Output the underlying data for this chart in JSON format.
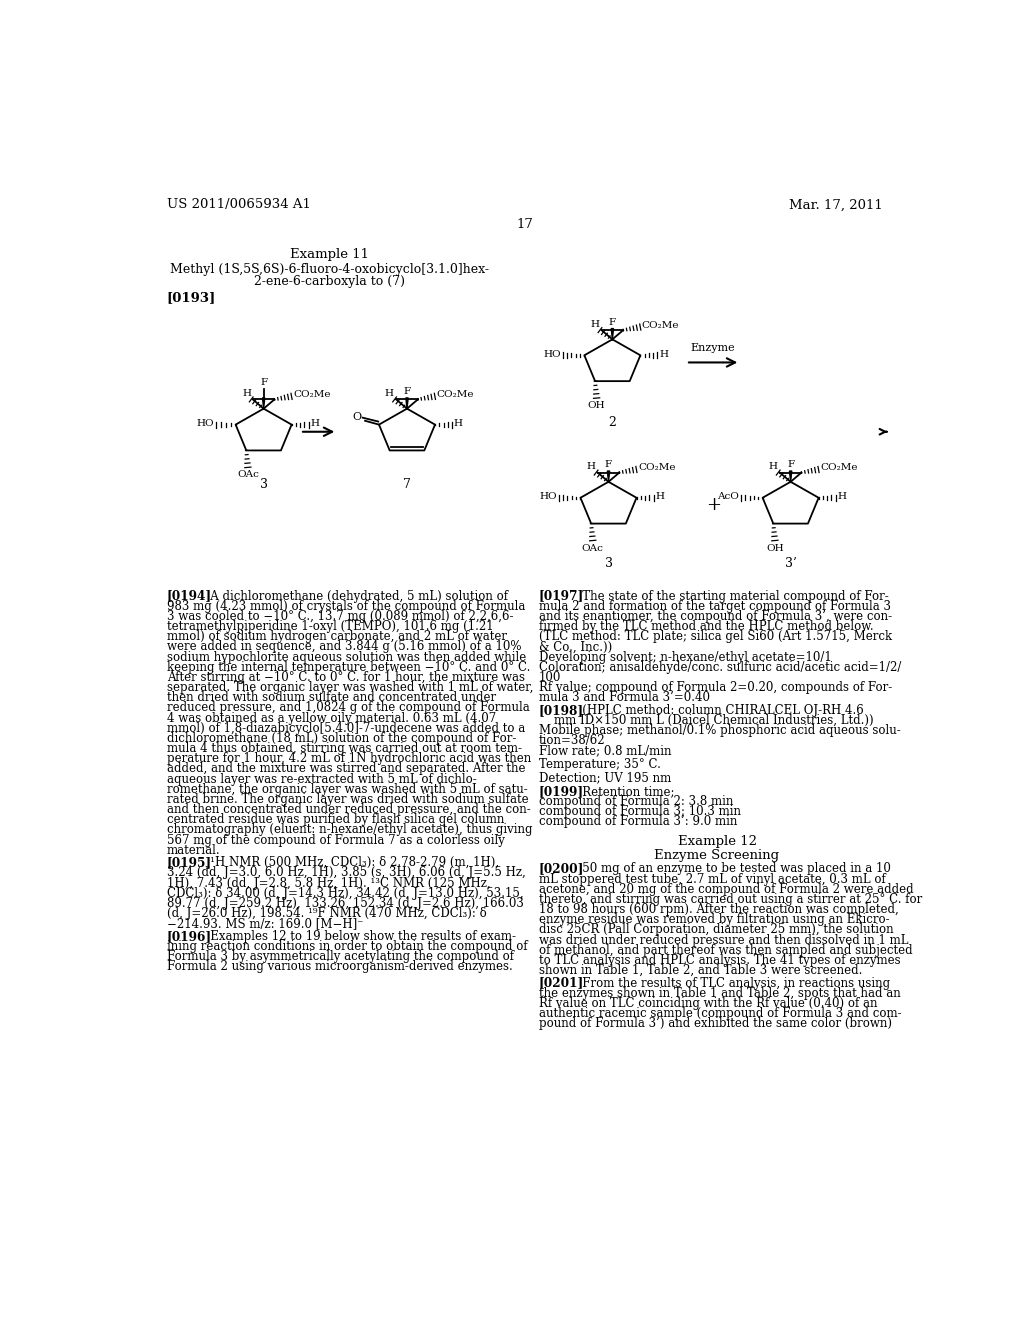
{
  "bg_color": "#ffffff",
  "header_left": "US 2011/0065934 A1",
  "header_right": "Mar. 17, 2011",
  "page_number": "17",
  "left_col_lines": [
    "[0194]   A dichloromethane (dehydrated, 5 mL) solution of",
    "983 mg (4.23 mmol) of crystals of the compound of Formula",
    "3 was cooled to −10° C., 13.7 mg (0.089 mmol) of 2,2,6,6-",
    "tetramethylpiperidine 1-oxyl (TEMPO), 101.6 mg (1.21",
    "mmol) of sodium hydrogen carbonate, and 2 mL of water",
    "were added in sequence, and 3.844 g (5.16 mmol) of a 10%",
    "sodium hypochlorite aqueous solution was then added while",
    "keeping the internal temperature between −10° C. and 0° C.",
    "After stirring at −10° C. to 0° C. for 1 hour, the mixture was",
    "separated. The organic layer was washed with 1 mL of water,",
    "then dried with sodium sulfate and concentrated under",
    "reduced pressure, and 1,0824 g of the compound of Formula",
    "4 was obtained as a yellow oily material. 0.63 mL (4.07",
    "mmol) of 1,8-diazabicyclo[5.4.0]-7-undecene was added to a",
    "dichloromethane (18 mL) solution of the compound of For-",
    "mula 4 thus obtained, stirring was carried out at room tem-",
    "perature for 1 hour, 4.2 mL of 1N hydrochloric acid was then",
    "added, and the mixture was stirred and separated. After the",
    "aqueous layer was re-extracted with 5 mL of dichlo-",
    "romethane, the organic layer was washed with 5 mL of satu-",
    "rated brine. The organic layer was dried with sodium sulfate",
    "and then concentrated under reduced pressure, and the con-",
    "centrated residue was purified by flash silica gel column",
    "chromatography (eluent: n-hexane/ethyl acetate), thus giving",
    "567 mg of the compound of Formula 7 as a colorless oily",
    "material."
  ],
  "p195_lines": [
    "[0195]   ¹H NMR (500 MHz, CDCl₃): δ 2.78-2.79 (m, 1H),",
    "3.24 (dd, J=3.0, 6.0 Hz, 1H), 3.85 (s, 3H), 6.06 (d, J=5.5 Hz,",
    "1H), 7.43 (dd, J=2.8, 5.8 Hz, 1H). ¹³C NMR (125 MHz,",
    "CDCl₃): δ 34.00 (d, J=14.3 Hz), 34.42 (d, J=13.0 Hz), 53.15,",
    "89.77 (d, J=259.2 Hz), 133.26, 152.34 (d, J=2.6 Hz), 166.03",
    "(d, J=26.0 Hz), 198.54. ¹⁹F NMR (470 MHz, CDCl₃): δ",
    "−214.93. MS m/z: 169.0 [M−H]⁻"
  ],
  "p196_lines": [
    "[0196]   Examples 12 to 19 below show the results of exam-",
    "ining reaction conditions in order to obtain the compound of",
    "Formula 3 by asymmetrically acetylating the compound of",
    "Formula 2 using various microorganism-derived enzymes."
  ],
  "right_col_lines": [
    "[0197]   The state of the starting material compound of For-",
    "mula 2 and formation of the target compound of Formula 3",
    "and its enantiomer, the compound of Formula 3’, were con-",
    "firmed by the TLC method and the HPLC method below.",
    "(TLC method: TLC plate; silica gel Si60 (Art 1.5715, Merck",
    "& Co., Inc.))",
    "Developing solvent; n-hexane/ethyl acetate=10/1",
    "Coloration; anisaldehyde/conc. sulfuric acid/acetic acid=1/2/",
    "100",
    "Rf value; compound of Formula 2=0.20, compounds of For-",
    "mula 3 and Formula 3’=0.40"
  ],
  "p198_lines": [
    "[0198]   (HPLC method: column CHIRALCEL OJ-RH 4.6",
    "    mm ID×150 mm L (Daicel Chemical Industries, Ltd.))",
    "Mobile phase; methanol/0.1% phosphoric acid aqueous solu-",
    "tion=38/62",
    "Flow rate; 0.8 mL/min"
  ],
  "p199_lines": [
    "[0199]   Retention time;",
    "compound of Formula 2: 3.8 min",
    "compound of Formula 3; 10.3 min",
    "compound of Formula 3’: 9.0 min"
  ],
  "p200_lines": [
    "[0200]   50 mg of an enzyme to be tested was placed in a 10",
    "mL stoppered test tube, 2.7 mL of vinyl acetate, 0.3 mL of",
    "acetone, and 20 mg of the compound of Formula 2 were added",
    "thereto, and stirring was carried out using a stirrer at 25° C. for",
    "18 to 98 hours (600 rpm). After the reaction was completed,",
    "enzyme residue was removed by filtration using an Ekicro-",
    "disc 25CR (Pall Corporation, diameter 25 mm), the solution",
    "was dried under reduced pressure and then dissolved in 1 mL",
    "of methanol, and part thereof was then sampled and subjected",
    "to TLC analysis and HPLC analysis. The 41 types of enzymes",
    "shown in Table 1, Table 2, and Table 3 were screened."
  ],
  "p201_lines": [
    "[0201]   From the results of TLC analysis, in reactions using",
    "the enzymes shown in Table 1 and Table 2, spots that had an",
    "Rf value on TLC coinciding with the Rf value (0.40) of an",
    "authentic racemic sample (compound of Formula 3 and com-",
    "pound of Formula 3’) and exhibited the same color (brown)"
  ]
}
